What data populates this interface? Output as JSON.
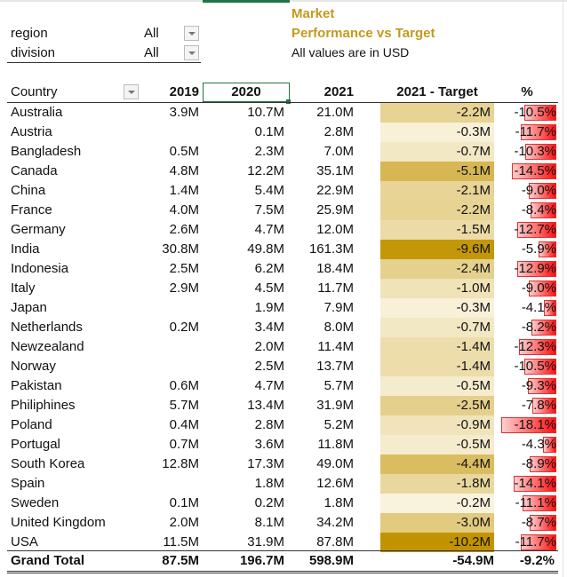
{
  "slicers": [
    {
      "label": "region",
      "value": "All"
    },
    {
      "label": "division",
      "value": "All"
    }
  ],
  "titles": {
    "line1": "Market",
    "line2": "Performance vs Target",
    "note": "All values are in USD"
  },
  "colors": {
    "title": "#c29a1d",
    "heat_low": "#fffdf5",
    "heat_high": "#c29300",
    "bar": "#ff1010",
    "selected": "#217346"
  },
  "table": {
    "headers": {
      "country": "Country",
      "y2019": "2019",
      "y2020": "2020",
      "y2021": "2021",
      "target": "2021 - Target",
      "pct": "%"
    },
    "rows": [
      {
        "country": "Australia",
        "y2019": "3.9M",
        "y2020": "10.7M",
        "y2021": "21.0M",
        "target": "-2.2M",
        "t": -2.2,
        "pct": "-10.5%",
        "p": -10.5
      },
      {
        "country": "Austria",
        "y2019": "",
        "y2020": "0.1M",
        "y2021": "2.8M",
        "target": "-0.3M",
        "t": -0.3,
        "pct": "-11.7%",
        "p": -11.7
      },
      {
        "country": "Bangladesh",
        "y2019": "0.5M",
        "y2020": "2.3M",
        "y2021": "7.0M",
        "target": "-0.7M",
        "t": -0.7,
        "pct": "-10.3%",
        "p": -10.3
      },
      {
        "country": "Canada",
        "y2019": "4.8M",
        "y2020": "12.2M",
        "y2021": "35.1M",
        "target": "-5.1M",
        "t": -5.1,
        "pct": "-14.5%",
        "p": -14.5
      },
      {
        "country": "China",
        "y2019": "1.4M",
        "y2020": "5.4M",
        "y2021": "22.9M",
        "target": "-2.1M",
        "t": -2.1,
        "pct": "-9.0%",
        "p": -9.0
      },
      {
        "country": "France",
        "y2019": "4.0M",
        "y2020": "7.5M",
        "y2021": "25.9M",
        "target": "-2.2M",
        "t": -2.2,
        "pct": "-8.4%",
        "p": -8.4
      },
      {
        "country": "Germany",
        "y2019": "2.6M",
        "y2020": "4.7M",
        "y2021": "12.0M",
        "target": "-1.5M",
        "t": -1.5,
        "pct": "-12.7%",
        "p": -12.7
      },
      {
        "country": "India",
        "y2019": "30.8M",
        "y2020": "49.8M",
        "y2021": "161.3M",
        "target": "-9.6M",
        "t": -9.6,
        "pct": "-5.9%",
        "p": -5.9
      },
      {
        "country": "Indonesia",
        "y2019": "2.5M",
        "y2020": "6.2M",
        "y2021": "18.4M",
        "target": "-2.4M",
        "t": -2.4,
        "pct": "-12.9%",
        "p": -12.9
      },
      {
        "country": "Italy",
        "y2019": "2.9M",
        "y2020": "4.5M",
        "y2021": "11.7M",
        "target": "-1.0M",
        "t": -1.0,
        "pct": "-9.0%",
        "p": -9.0
      },
      {
        "country": "Japan",
        "y2019": "",
        "y2020": "1.9M",
        "y2021": "7.9M",
        "target": "-0.3M",
        "t": -0.3,
        "pct": "-4.1%",
        "p": -4.1
      },
      {
        "country": "Netherlands",
        "y2019": "0.2M",
        "y2020": "3.4M",
        "y2021": "8.0M",
        "target": "-0.7M",
        "t": -0.7,
        "pct": "-8.2%",
        "p": -8.2
      },
      {
        "country": "Newzealand",
        "y2019": "",
        "y2020": "2.0M",
        "y2021": "11.4M",
        "target": "-1.4M",
        "t": -1.4,
        "pct": "-12.3%",
        "p": -12.3
      },
      {
        "country": "Norway",
        "y2019": "",
        "y2020": "2.5M",
        "y2021": "13.7M",
        "target": "-1.4M",
        "t": -1.4,
        "pct": "-10.5%",
        "p": -10.5
      },
      {
        "country": "Pakistan",
        "y2019": "0.6M",
        "y2020": "4.7M",
        "y2021": "5.7M",
        "target": "-0.5M",
        "t": -0.5,
        "pct": "-9.3%",
        "p": -9.3
      },
      {
        "country": "Philiphines",
        "y2019": "5.7M",
        "y2020": "13.4M",
        "y2021": "31.9M",
        "target": "-2.5M",
        "t": -2.5,
        "pct": "-7.8%",
        "p": -7.8
      },
      {
        "country": "Poland",
        "y2019": "0.4M",
        "y2020": "2.8M",
        "y2021": "5.2M",
        "target": "-0.9M",
        "t": -0.9,
        "pct": "-18.1%",
        "p": -18.1
      },
      {
        "country": "Portugal",
        "y2019": "0.7M",
        "y2020": "3.6M",
        "y2021": "11.8M",
        "target": "-0.5M",
        "t": -0.5,
        "pct": "-4.3%",
        "p": -4.3
      },
      {
        "country": "South Korea",
        "y2019": "12.8M",
        "y2020": "17.3M",
        "y2021": "49.0M",
        "target": "-4.4M",
        "t": -4.4,
        "pct": "-8.9%",
        "p": -8.9
      },
      {
        "country": "Spain",
        "y2019": "",
        "y2020": "1.8M",
        "y2021": "12.6M",
        "target": "-1.8M",
        "t": -1.8,
        "pct": "-14.1%",
        "p": -14.1
      },
      {
        "country": "Sweden",
        "y2019": "0.1M",
        "y2020": "0.2M",
        "y2021": "1.8M",
        "target": "-0.2M",
        "t": -0.2,
        "pct": "-11.1%",
        "p": -11.1
      },
      {
        "country": "United Kingdom",
        "y2019": "2.0M",
        "y2020": "8.1M",
        "y2021": "34.2M",
        "target": "-3.0M",
        "t": -3.0,
        "pct": "-8.7%",
        "p": -8.7
      },
      {
        "country": "USA",
        "y2019": "11.5M",
        "y2020": "31.9M",
        "y2021": "87.8M",
        "target": "-10.2M",
        "t": -10.2,
        "pct": "-11.7%",
        "p": -11.7
      }
    ],
    "total": {
      "country": "Grand Total",
      "y2019": "87.5M",
      "y2020": "196.7M",
      "y2021": "598.9M",
      "target": "-54.9M",
      "pct": "-9.2%"
    }
  }
}
